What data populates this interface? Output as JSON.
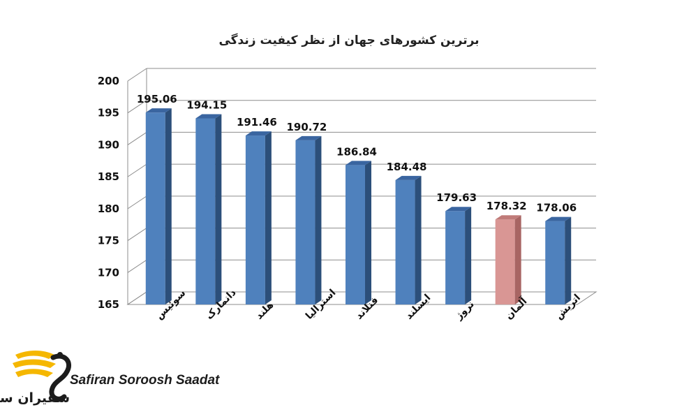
{
  "chart_data": {
    "type": "bar",
    "title": "برترین کشورهای جهان از نظر کیفیت زندگی",
    "categories": [
      "سوئیس",
      "دانمارک",
      "هلند",
      "استرالیا",
      "فنلاند",
      "ایسلند",
      "نروژ",
      "آلمان",
      "اتریش"
    ],
    "values": [
      195.06,
      194.15,
      191.46,
      190.72,
      186.84,
      184.48,
      179.63,
      178.32,
      178.06
    ],
    "value_labels": [
      "195.06",
      "194.15",
      "191.46",
      "190.72",
      "186.84",
      "184.48",
      "179.63",
      "178.32",
      "178.06"
    ],
    "highlight_index": 7,
    "ylim": [
      165,
      200
    ],
    "yticks": [
      "165",
      "170",
      "175",
      "180",
      "185",
      "190",
      "195",
      "200"
    ],
    "grid": true,
    "xlabel": "",
    "ylabel": "",
    "colors": {
      "bar_front": "#4f81bd",
      "bar_side": "#2c4f7a",
      "bar_top": "#3a65a0",
      "highlight_front": "#d99694",
      "highlight_side": "#a86563",
      "highlight_top": "#c07b79",
      "grid": "#8c8c8c"
    }
  },
  "watermark": {
    "brand_en": "Safiran Soroosh Saadat",
    "brand_fa": "سفیران سروش سعادت",
    "wing_color": "#f5b700",
    "swan_color": "#1c1c1c"
  }
}
